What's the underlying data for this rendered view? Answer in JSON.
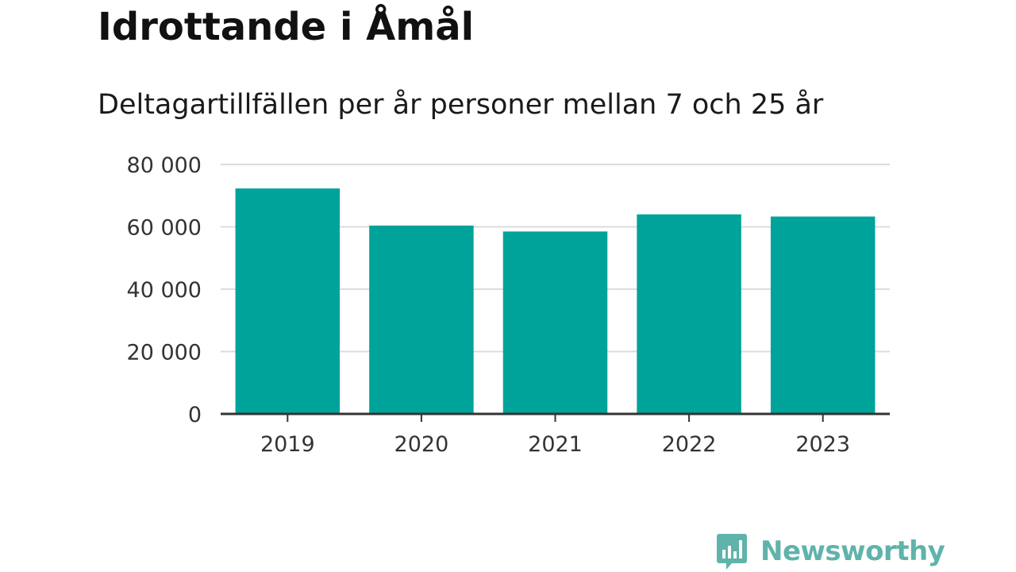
{
  "title": "Idrottande i Åmål",
  "subtitle": "Deltagartillfällen per år personer mellan 7 och 25 år",
  "brand": {
    "name": "Newsworthy",
    "icon": "newsworthy-logo-icon",
    "color": "#5fb3aa"
  },
  "chart_data": {
    "type": "bar",
    "categories": [
      "2019",
      "2020",
      "2021",
      "2022",
      "2023"
    ],
    "values": [
      72300,
      60400,
      58500,
      64000,
      63300
    ],
    "ylim": [
      0,
      80000
    ],
    "yticks": [
      0,
      20000,
      40000,
      60000,
      80000
    ],
    "ytick_labels": [
      "0",
      "20 000",
      "40 000",
      "60 000",
      "80 000"
    ],
    "bar_color": "#00a39a",
    "grid": true,
    "legend": "none"
  }
}
